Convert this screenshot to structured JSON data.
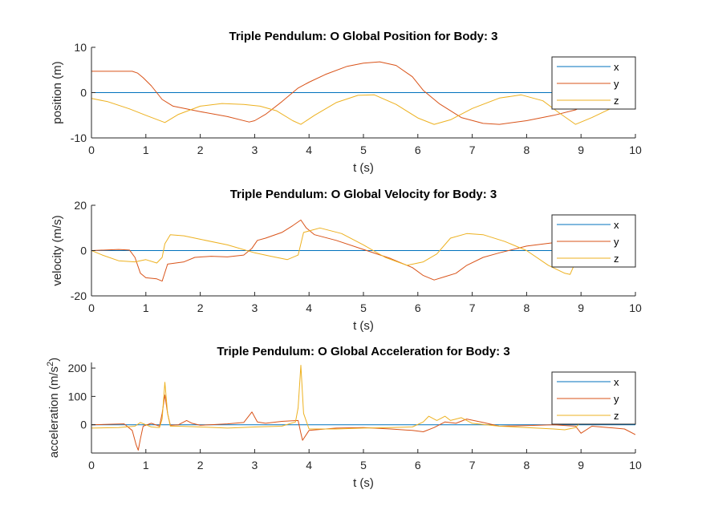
{
  "chart_data": [
    {
      "type": "line",
      "title": "Triple Pendulum: O Global Position for Body: 3",
      "xlabel": "t (s)",
      "ylabel": "position (m)",
      "xlim": [
        0,
        10
      ],
      "ylim": [
        -10,
        10
      ],
      "xticks": [
        "0",
        "1",
        "2",
        "3",
        "4",
        "5",
        "6",
        "7",
        "8",
        "9",
        "10"
      ],
      "yticks": [
        "-10",
        "0",
        "10"
      ],
      "legend_position": "top-right",
      "colors": {
        "x": "#0072BD",
        "y": "#D95319",
        "z": "#EDB120"
      },
      "series": [
        {
          "name": "x",
          "x": [
            0,
            10
          ],
          "y": [
            0,
            0
          ]
        },
        {
          "name": "y",
          "x": [
            0,
            0.5,
            0.75,
            0.85,
            0.95,
            1.1,
            1.3,
            1.5,
            2.0,
            2.5,
            2.9,
            3.0,
            3.2,
            3.5,
            3.8,
            4.0,
            4.3,
            4.7,
            5.0,
            5.3,
            5.6,
            5.9,
            6.1,
            6.4,
            6.8,
            7.2,
            7.5,
            8.0,
            8.5,
            8.9,
            9.2,
            9.6,
            10.0
          ],
          "y": [
            4.7,
            4.7,
            4.7,
            4.3,
            3.3,
            1.5,
            -1.5,
            -3.0,
            -4.2,
            -5.3,
            -6.5,
            -6.2,
            -4.8,
            -2.0,
            1.0,
            2.3,
            4.0,
            5.8,
            6.5,
            6.8,
            6.0,
            3.5,
            0.5,
            -2.5,
            -5.5,
            -6.8,
            -7.0,
            -6.2,
            -5.0,
            -3.8,
            -2.0,
            3.0,
            6.6
          ]
        },
        {
          "name": "z",
          "x": [
            0,
            0.3,
            0.7,
            1.0,
            1.35,
            1.6,
            2.0,
            2.4,
            2.8,
            3.1,
            3.4,
            3.7,
            3.85,
            4.1,
            4.5,
            4.9,
            5.2,
            5.6,
            6.0,
            6.3,
            6.6,
            7.0,
            7.5,
            7.9,
            8.3,
            8.6,
            8.9,
            9.2,
            9.6,
            10.0
          ],
          "y": [
            -1.3,
            -2.0,
            -3.6,
            -5.0,
            -6.6,
            -4.8,
            -3.0,
            -2.4,
            -2.6,
            -3.0,
            -4.0,
            -6.2,
            -7.0,
            -5.0,
            -2.2,
            -0.6,
            -0.5,
            -2.6,
            -5.6,
            -7.0,
            -6.0,
            -3.5,
            -1.2,
            -0.5,
            -1.8,
            -4.5,
            -7.0,
            -5.5,
            -3.2,
            -2.5
          ]
        }
      ]
    },
    {
      "type": "line",
      "title": "Triple Pendulum: O Global Velocity for Body: 3",
      "xlabel": "t (s)",
      "ylabel": "velocity (m/s)",
      "xlim": [
        0,
        10
      ],
      "ylim": [
        -20,
        20
      ],
      "xticks": [
        "0",
        "1",
        "2",
        "3",
        "4",
        "5",
        "6",
        "7",
        "8",
        "9",
        "10"
      ],
      "yticks": [
        "-20",
        "0",
        "20"
      ],
      "legend_position": "top-right",
      "colors": {
        "x": "#0072BD",
        "y": "#D95319",
        "z": "#EDB120"
      },
      "series": [
        {
          "name": "x",
          "x": [
            0,
            10
          ],
          "y": [
            0,
            0
          ]
        },
        {
          "name": "y",
          "x": [
            0,
            0.5,
            0.7,
            0.8,
            0.9,
            1.0,
            1.2,
            1.3,
            1.4,
            1.55,
            1.7,
            1.9,
            2.2,
            2.5,
            2.8,
            2.95,
            3.05,
            3.2,
            3.5,
            3.7,
            3.85,
            3.95,
            4.1,
            4.5,
            5.0,
            5.5,
            5.9,
            6.1,
            6.3,
            6.5,
            6.7,
            6.9,
            7.2,
            7.5,
            8.0,
            8.5,
            8.9,
            9.2,
            9.5,
            9.7,
            10.0
          ],
          "y": [
            0,
            0.5,
            0.2,
            -3.0,
            -10.0,
            -12.0,
            -12.5,
            -13.5,
            -6.0,
            -5.5,
            -5.0,
            -3.0,
            -2.5,
            -2.8,
            -2.0,
            1.0,
            4.5,
            5.5,
            8.0,
            11.0,
            13.5,
            10.0,
            7.0,
            4.5,
            0.5,
            -3.5,
            -7.5,
            -11.0,
            -13.0,
            -11.5,
            -10.0,
            -6.5,
            -3.0,
            -1.0,
            2.0,
            3.5,
            4.5,
            3.5,
            3.0,
            1.5,
            -1.0
          ]
        },
        {
          "name": "z",
          "x": [
            0,
            0.2,
            0.5,
            0.8,
            1.0,
            1.2,
            1.3,
            1.35,
            1.45,
            1.7,
            2.0,
            2.5,
            3.0,
            3.3,
            3.6,
            3.8,
            3.9,
            4.2,
            4.6,
            5.0,
            5.4,
            5.8,
            6.1,
            6.35,
            6.6,
            6.9,
            7.2,
            7.6,
            8.0,
            8.4,
            8.7,
            8.8,
            8.9,
            9.1,
            9.4,
            9.7,
            10.0
          ],
          "y": [
            0,
            -2.0,
            -4.5,
            -5.0,
            -4.0,
            -5.5,
            -3.0,
            3.0,
            7.0,
            6.5,
            5.0,
            2.5,
            -1.0,
            -2.5,
            -4.0,
            -2.0,
            8.0,
            10.0,
            7.5,
            2.5,
            -3.0,
            -6.5,
            -5.0,
            -1.5,
            5.5,
            7.5,
            7.0,
            4.0,
            0.0,
            -6.5,
            -10.0,
            -10.5,
            -5.0,
            0.5,
            0.0,
            0.2,
            2.0
          ]
        }
      ]
    },
    {
      "type": "line",
      "title": "Triple Pendulum: O Global Acceleration for Body: 3",
      "xlabel": "t (s)",
      "ylabel": "acceleration (m/s",
      "ylabel_sup": "2",
      "ylabel_close": ")",
      "xlim": [
        0,
        10
      ],
      "ylim": [
        -100,
        220
      ],
      "xticks": [
        "0",
        "1",
        "2",
        "3",
        "4",
        "5",
        "6",
        "7",
        "8",
        "9",
        "10"
      ],
      "yticks": [
        "0",
        "100",
        "200"
      ],
      "legend_position": "top-right",
      "colors": {
        "x": "#0072BD",
        "y": "#D95319",
        "z": "#EDB120"
      },
      "series": [
        {
          "name": "x",
          "x": [
            0,
            10
          ],
          "y": [
            0,
            0
          ]
        },
        {
          "name": "y",
          "x": [
            0,
            0.6,
            0.75,
            0.82,
            0.86,
            0.9,
            0.95,
            1.1,
            1.25,
            1.3,
            1.35,
            1.4,
            1.45,
            1.6,
            1.75,
            1.85,
            2.0,
            2.5,
            2.8,
            2.95,
            3.05,
            3.2,
            3.5,
            3.8,
            3.85,
            3.88,
            4.0,
            4.5,
            5.0,
            5.5,
            5.9,
            6.1,
            6.3,
            6.5,
            6.7,
            6.9,
            7.2,
            7.5,
            8.0,
            8.5,
            8.9,
            9.0,
            9.2,
            9.5,
            9.8,
            10.0
          ],
          "y": [
            0,
            3,
            -20,
            -70,
            -90,
            -50,
            -5,
            5,
            -5,
            40,
            105,
            40,
            -2,
            0,
            15,
            5,
            -2,
            3,
            8,
            45,
            10,
            5,
            12,
            15,
            -30,
            -55,
            -20,
            -12,
            -10,
            -15,
            -20,
            -25,
            -10,
            10,
            5,
            20,
            8,
            -5,
            -3,
            0,
            -5,
            -30,
            -5,
            -10,
            -15,
            -35
          ]
        },
        {
          "name": "z",
          "x": [
            0,
            0.5,
            0.8,
            0.9,
            1.1,
            1.25,
            1.3,
            1.35,
            1.4,
            1.45,
            1.6,
            2.0,
            2.5,
            3.0,
            3.5,
            3.75,
            3.8,
            3.85,
            3.9,
            4.0,
            4.5,
            5.0,
            5.5,
            5.9,
            6.1,
            6.2,
            6.35,
            6.5,
            6.6,
            6.8,
            7.0,
            7.5,
            8.0,
            8.5,
            8.7,
            8.9,
            9.0,
            9.5,
            9.9,
            10.0
          ],
          "y": [
            -12,
            -10,
            -5,
            8,
            -8,
            -10,
            20,
            150,
            40,
            -5,
            -5,
            -8,
            -12,
            -8,
            -5,
            10,
            60,
            210,
            40,
            -15,
            -15,
            -12,
            -10,
            -8,
            10,
            30,
            15,
            30,
            15,
            25,
            5,
            -5,
            -10,
            -15,
            -18,
            -10,
            10,
            10,
            8,
            20
          ]
        }
      ]
    }
  ]
}
